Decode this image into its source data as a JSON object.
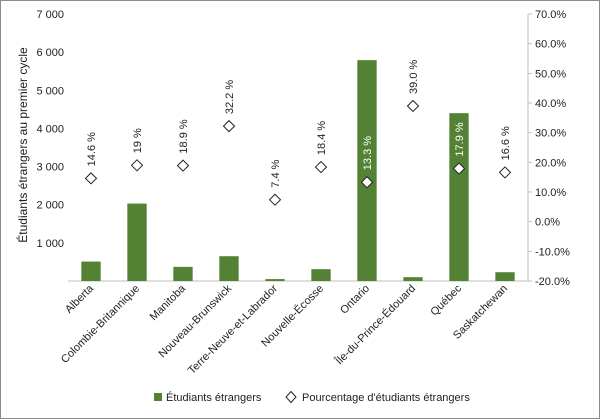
{
  "chart_data": {
    "type": "bar",
    "categories": [
      "Alberta",
      "Colombie-Britannique",
      "Manitoba",
      "Nouveau-Brunswick",
      "Terre-Neuve-et-Labrador",
      "Nouvelle-Écosse",
      "Ontario",
      "Île-du-Prince-Édouard",
      "Québec",
      "Saskatchewan"
    ],
    "series": [
      {
        "name": "Étudiants étrangers",
        "type": "bar",
        "axis": "left",
        "color": "#548235",
        "values": [
          510,
          2030,
          370,
          650,
          50,
          310,
          5790,
          100,
          4400,
          230
        ]
      },
      {
        "name": "Pourcentage d'étudiants étrangers",
        "type": "scatter",
        "axis": "right",
        "marker": "diamond",
        "values": [
          14.6,
          19,
          18.9,
          32.2,
          7.4,
          18.4,
          13.3,
          39.0,
          17.9,
          16.6
        ],
        "labels": [
          "14.6 %",
          "19 %",
          "18.9 %",
          "32.2 %",
          "7.4 %",
          "18.4 %",
          "13.3 %",
          "39.0 %",
          "17.9 %",
          "16.6 %"
        ]
      }
    ],
    "ylabel": "Étudiants étrangers au premier cycle",
    "ylim": [
      0,
      7000
    ],
    "y_ticks": [
      0,
      1000,
      2000,
      3000,
      4000,
      5000,
      6000,
      7000
    ],
    "y_tick_labels": [
      "",
      "1 000",
      "2 000",
      "3 000",
      "4 000",
      "5 000",
      "6 000",
      "7 000"
    ],
    "y2lim": [
      -20,
      70
    ],
    "y2_ticks": [
      -20,
      -10,
      0,
      10,
      20,
      30,
      40,
      50,
      60,
      70
    ],
    "y2_tick_labels": [
      "-20.0%",
      "-10.0%",
      "0.0%",
      "10.0%",
      "20.0%",
      "30.0%",
      "40.0%",
      "50.0%",
      "60.0%",
      "70.0%"
    ],
    "grid": false,
    "legend_position": "bottom"
  }
}
